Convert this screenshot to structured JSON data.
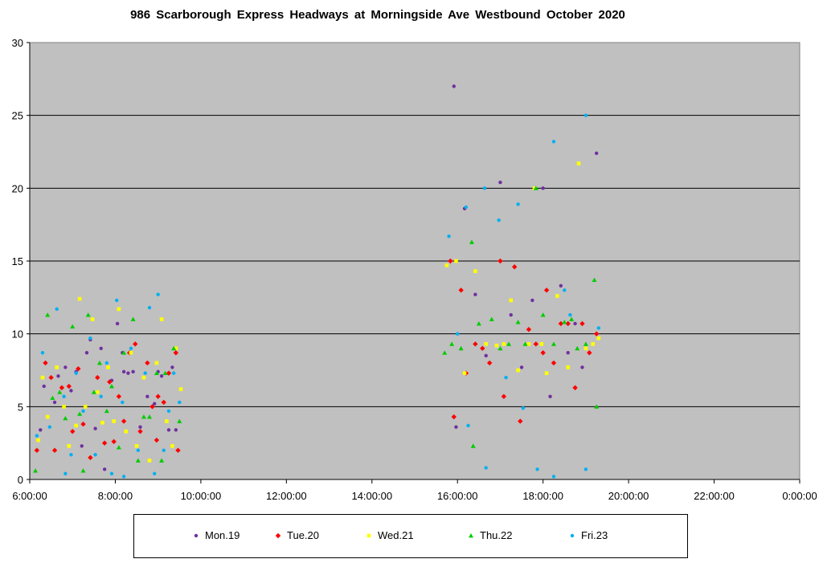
{
  "chart_data": {
    "type": "scatter",
    "title": "986 Scarborough Express Headways at Morningside Ave Westbound October 2020",
    "xlabel": "",
    "ylabel": "",
    "xlim": [
      "6:00:00",
      "0:00:00"
    ],
    "ylim": [
      0,
      30
    ],
    "x_ticks": [
      "6:00:00",
      "8:00:00",
      "10:00:00",
      "12:00:00",
      "14:00:00",
      "16:00:00",
      "18:00:00",
      "20:00:00",
      "22:00:00",
      "0:00:00"
    ],
    "y_ticks": [
      "0",
      "5",
      "10",
      "15",
      "20",
      "25",
      "30"
    ],
    "grid": "horizontal",
    "legend_position": "bottom",
    "plot_background": "#c0c0c0",
    "series": [
      {
        "name": "Mon.19",
        "color": "#7030a0",
        "marker": "circle",
        "points": [
          [
            "6:15:00",
            3.4
          ],
          [
            "6:20:00",
            6.4
          ],
          [
            "6:35:00",
            5.3
          ],
          [
            "6:40:00",
            7.1
          ],
          [
            "6:50:00",
            7.7
          ],
          [
            "6:58:00",
            6.1
          ],
          [
            "7:05:00",
            7.4
          ],
          [
            "7:13:00",
            2.3
          ],
          [
            "7:20:00",
            8.7
          ],
          [
            "7:25:00",
            9.6
          ],
          [
            "7:32:00",
            3.5
          ],
          [
            "7:40:00",
            9.0
          ],
          [
            "7:45:00",
            0.7
          ],
          [
            "7:55:00",
            6.8
          ],
          [
            "8:03:00",
            10.7
          ],
          [
            "8:10:00",
            8.7
          ],
          [
            "8:12:00",
            7.4
          ],
          [
            "8:18:00",
            7.3
          ],
          [
            "8:25:00",
            7.4
          ],
          [
            "8:35:00",
            3.6
          ],
          [
            "8:45:00",
            5.7
          ],
          [
            "8:55:00",
            5.2
          ],
          [
            "9:00:00",
            7.4
          ],
          [
            "9:05:00",
            7.1
          ],
          [
            "9:15:00",
            3.4
          ],
          [
            "9:20:00",
            7.7
          ],
          [
            "9:25:00",
            3.4
          ],
          [
            "15:55:00",
            27.0
          ],
          [
            "15:58:00",
            3.6
          ],
          [
            "16:10:00",
            18.6
          ],
          [
            "16:25:00",
            12.7
          ],
          [
            "16:40:00",
            8.5
          ],
          [
            "17:00:00",
            20.4
          ],
          [
            "17:15:00",
            11.3
          ],
          [
            "17:30:00",
            7.7
          ],
          [
            "17:45:00",
            12.3
          ],
          [
            "18:00:00",
            20.0
          ],
          [
            "18:10:00",
            5.7
          ],
          [
            "18:25:00",
            13.3
          ],
          [
            "18:35:00",
            8.7
          ],
          [
            "18:45:00",
            10.7
          ],
          [
            "18:55:00",
            7.7
          ],
          [
            "19:15:00",
            22.4
          ]
        ]
      },
      {
        "name": "Tue.20",
        "color": "#ff0000",
        "marker": "diamond",
        "points": [
          [
            "6:10:00",
            2.0
          ],
          [
            "6:22:00",
            8.0
          ],
          [
            "6:30:00",
            7.0
          ],
          [
            "6:35:00",
            2.0
          ],
          [
            "6:45:00",
            6.3
          ],
          [
            "6:55:00",
            6.4
          ],
          [
            "7:00:00",
            3.3
          ],
          [
            "7:08:00",
            7.6
          ],
          [
            "7:15:00",
            3.8
          ],
          [
            "7:25:00",
            1.5
          ],
          [
            "7:35:00",
            7.0
          ],
          [
            "7:45:00",
            2.5
          ],
          [
            "7:52:00",
            6.7
          ],
          [
            "7:58:00",
            2.6
          ],
          [
            "8:05:00",
            5.7
          ],
          [
            "8:12:00",
            4.0
          ],
          [
            "8:20:00",
            8.7
          ],
          [
            "8:28:00",
            9.3
          ],
          [
            "8:35:00",
            3.3
          ],
          [
            "8:45:00",
            8.0
          ],
          [
            "8:52:00",
            5.0
          ],
          [
            "8:58:00",
            2.7
          ],
          [
            "9:00:00",
            5.7
          ],
          [
            "9:08:00",
            5.3
          ],
          [
            "9:15:00",
            7.3
          ],
          [
            "9:25:00",
            8.7
          ],
          [
            "9:28:00",
            2.0
          ],
          [
            "15:50:00",
            15.0
          ],
          [
            "15:55:00",
            4.3
          ],
          [
            "16:05:00",
            13.0
          ],
          [
            "16:12:00",
            7.3
          ],
          [
            "16:25:00",
            9.3
          ],
          [
            "16:35:00",
            9.0
          ],
          [
            "16:45:00",
            8.0
          ],
          [
            "17:00:00",
            15.0
          ],
          [
            "17:05:00",
            5.7
          ],
          [
            "17:20:00",
            14.6
          ],
          [
            "17:28:00",
            4.0
          ],
          [
            "17:40:00",
            10.3
          ],
          [
            "17:50:00",
            9.3
          ],
          [
            "18:00:00",
            8.7
          ],
          [
            "18:05:00",
            13.0
          ],
          [
            "18:15:00",
            8.0
          ],
          [
            "18:25:00",
            10.7
          ],
          [
            "18:35:00",
            10.7
          ],
          [
            "18:45:00",
            6.3
          ],
          [
            "18:55:00",
            10.7
          ],
          [
            "19:05:00",
            8.7
          ],
          [
            "19:15:00",
            10.0
          ]
        ]
      },
      {
        "name": "Wed.21",
        "color": "#ffff00",
        "marker": "square",
        "points": [
          [
            "6:12:00",
            2.7
          ],
          [
            "6:18:00",
            7.0
          ],
          [
            "6:25:00",
            4.3
          ],
          [
            "6:38:00",
            7.7
          ],
          [
            "6:48:00",
            5.0
          ],
          [
            "6:55:00",
            2.3
          ],
          [
            "7:05:00",
            3.7
          ],
          [
            "7:10:00",
            12.4
          ],
          [
            "7:18:00",
            5.0
          ],
          [
            "7:28:00",
            11.0
          ],
          [
            "7:35:00",
            6.0
          ],
          [
            "7:42:00",
            3.9
          ],
          [
            "7:50:00",
            7.7
          ],
          [
            "7:58:00",
            4.0
          ],
          [
            "8:05:00",
            11.7
          ],
          [
            "8:15:00",
            3.3
          ],
          [
            "8:22:00",
            8.7
          ],
          [
            "8:30:00",
            2.3
          ],
          [
            "8:40:00",
            7.0
          ],
          [
            "8:48:00",
            1.3
          ],
          [
            "8:58:00",
            8.0
          ],
          [
            "9:05:00",
            11.0
          ],
          [
            "9:12:00",
            4.0
          ],
          [
            "9:20:00",
            2.3
          ],
          [
            "9:25:00",
            9.0
          ],
          [
            "9:32:00",
            6.2
          ],
          [
            "15:45:00",
            14.7
          ],
          [
            "15:58:00",
            15.0
          ],
          [
            "16:10:00",
            7.3
          ],
          [
            "16:25:00",
            14.3
          ],
          [
            "16:40:00",
            9.3
          ],
          [
            "16:55:00",
            9.2
          ],
          [
            "17:05:00",
            9.3
          ],
          [
            "17:15:00",
            12.3
          ],
          [
            "17:25:00",
            7.5
          ],
          [
            "17:40:00",
            9.3
          ],
          [
            "17:48:00",
            20.0
          ],
          [
            "17:58:00",
            9.3
          ],
          [
            "18:05:00",
            7.3
          ],
          [
            "18:20:00",
            12.6
          ],
          [
            "18:35:00",
            7.7
          ],
          [
            "18:50:00",
            21.7
          ],
          [
            "19:00:00",
            9.0
          ],
          [
            "19:10:00",
            9.3
          ],
          [
            "19:18:00",
            9.7
          ]
        ]
      },
      {
        "name": "Thu.22",
        "color": "#00cc00",
        "marker": "triangle",
        "points": [
          [
            "6:08:00",
            0.6
          ],
          [
            "6:25:00",
            11.3
          ],
          [
            "6:32:00",
            5.6
          ],
          [
            "6:42:00",
            6.0
          ],
          [
            "6:50:00",
            4.2
          ],
          [
            "7:00:00",
            10.5
          ],
          [
            "7:10:00",
            4.5
          ],
          [
            "7:15:00",
            0.6
          ],
          [
            "7:22:00",
            11.3
          ],
          [
            "7:30:00",
            6.0
          ],
          [
            "7:38:00",
            8.0
          ],
          [
            "7:48:00",
            4.7
          ],
          [
            "7:55:00",
            6.4
          ],
          [
            "8:05:00",
            2.2
          ],
          [
            "8:12:00",
            8.7
          ],
          [
            "8:25:00",
            11.0
          ],
          [
            "8:32:00",
            1.3
          ],
          [
            "8:40:00",
            4.3
          ],
          [
            "8:48:00",
            4.3
          ],
          [
            "8:58:00",
            7.3
          ],
          [
            "9:05:00",
            1.3
          ],
          [
            "9:10:00",
            7.3
          ],
          [
            "9:22:00",
            9.0
          ],
          [
            "9:30:00",
            4.0
          ],
          [
            "15:42:00",
            8.7
          ],
          [
            "15:52:00",
            9.3
          ],
          [
            "16:05:00",
            9.0
          ],
          [
            "16:20:00",
            16.3
          ],
          [
            "16:22:00",
            2.3
          ],
          [
            "16:30:00",
            10.7
          ],
          [
            "16:48:00",
            11.0
          ],
          [
            "17:00:00",
            9.0
          ],
          [
            "17:12:00",
            9.3
          ],
          [
            "17:25:00",
            10.8
          ],
          [
            "17:35:00",
            9.3
          ],
          [
            "17:50:00",
            20.0
          ],
          [
            "18:00:00",
            11.3
          ],
          [
            "18:15:00",
            9.3
          ],
          [
            "18:30:00",
            10.8
          ],
          [
            "18:40:00",
            11.0
          ],
          [
            "18:48:00",
            9.0
          ],
          [
            "19:00:00",
            9.3
          ],
          [
            "19:12:00",
            13.7
          ],
          [
            "19:15:00",
            5.0
          ]
        ]
      },
      {
        "name": "Fri.23",
        "color": "#00b0f0",
        "marker": "circle",
        "points": [
          [
            "6:10:00",
            3.0
          ],
          [
            "6:18:00",
            8.7
          ],
          [
            "6:28:00",
            3.6
          ],
          [
            "6:38:00",
            11.7
          ],
          [
            "6:48:00",
            5.7
          ],
          [
            "6:50:00",
            0.4
          ],
          [
            "6:58:00",
            1.7
          ],
          [
            "7:05:00",
            7.3
          ],
          [
            "7:15:00",
            4.7
          ],
          [
            "7:25:00",
            9.7
          ],
          [
            "7:32:00",
            1.7
          ],
          [
            "7:40:00",
            5.7
          ],
          [
            "7:48:00",
            8.0
          ],
          [
            "7:55:00",
            0.4
          ],
          [
            "8:02:00",
            12.3
          ],
          [
            "8:10:00",
            5.3
          ],
          [
            "8:12:00",
            0.2
          ],
          [
            "8:22:00",
            9.0
          ],
          [
            "8:32:00",
            2.0
          ],
          [
            "8:42:00",
            7.3
          ],
          [
            "8:48:00",
            11.8
          ],
          [
            "8:55:00",
            0.4
          ],
          [
            "9:00:00",
            12.7
          ],
          [
            "9:08:00",
            2.0
          ],
          [
            "9:15:00",
            4.7
          ],
          [
            "9:22:00",
            7.3
          ],
          [
            "9:30:00",
            5.3
          ],
          [
            "15:48:00",
            16.7
          ],
          [
            "16:00:00",
            10.0
          ],
          [
            "16:12:00",
            18.7
          ],
          [
            "16:15:00",
            3.7
          ],
          [
            "16:38:00",
            20.0
          ],
          [
            "16:40:00",
            0.8
          ],
          [
            "16:58:00",
            17.8
          ],
          [
            "17:08:00",
            7.0
          ],
          [
            "17:25:00",
            18.9
          ],
          [
            "17:32:00",
            4.9
          ],
          [
            "17:52:00",
            0.7
          ],
          [
            "18:15:00",
            23.2
          ],
          [
            "18:15:00",
            0.2
          ],
          [
            "18:30:00",
            13.0
          ],
          [
            "18:38:00",
            11.3
          ],
          [
            "19:00:00",
            25.0
          ],
          [
            "19:00:00",
            0.7
          ],
          [
            "19:18:00",
            10.4
          ]
        ]
      }
    ]
  }
}
